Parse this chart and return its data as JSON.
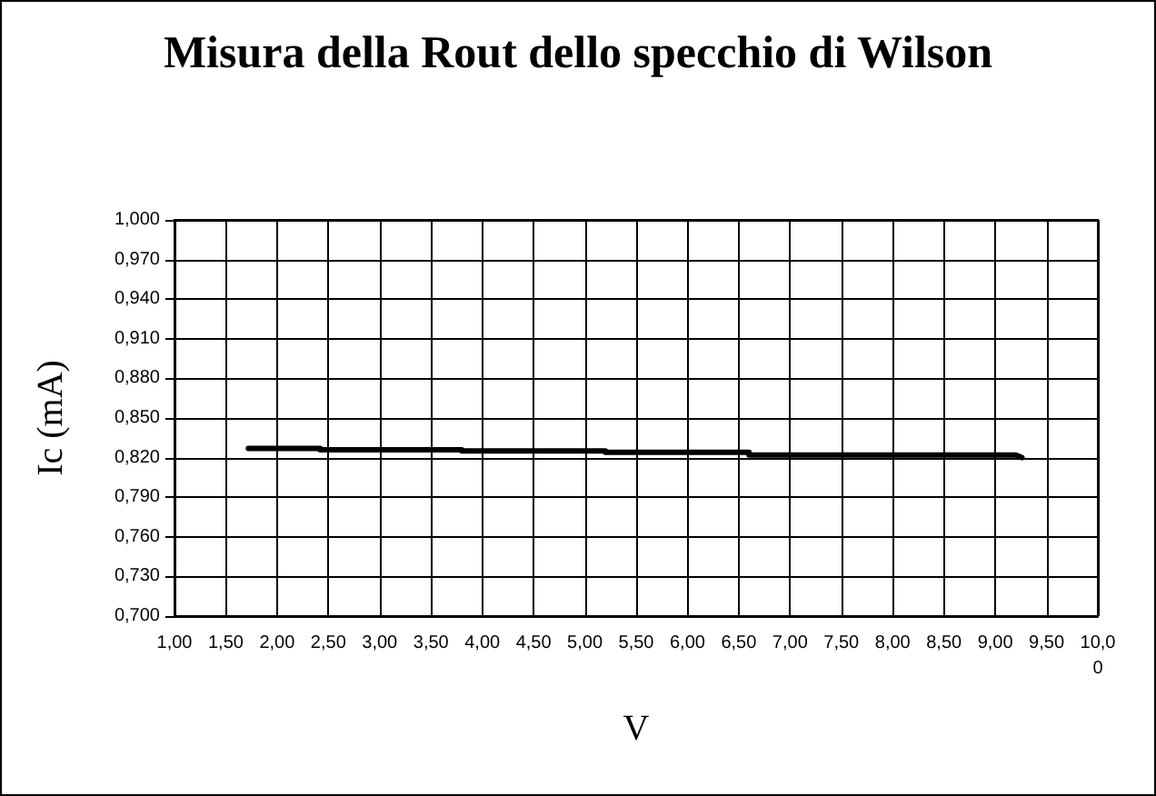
{
  "chart_data": {
    "type": "line",
    "title": "Misura della Rout dello specchio di Wilson",
    "xlabel": "V",
    "ylabel": "Ic (mA)",
    "x": [
      1.72,
      2.42,
      2.42,
      3.8,
      3.8,
      5.2,
      5.2,
      6.6,
      6.6,
      9.2,
      9.26
    ],
    "series": [
      {
        "color": "#000000",
        "values": [
          0.827,
          0.827,
          0.826,
          0.826,
          0.825,
          0.825,
          0.824,
          0.824,
          0.822,
          0.822,
          0.82
        ]
      }
    ],
    "xlim": [
      1,
      10
    ],
    "xticks": [
      {
        "value": 1,
        "label": "1,00"
      },
      {
        "value": 1.5,
        "label": "1,50"
      },
      {
        "value": 2,
        "label": "2,00"
      },
      {
        "value": 2.5,
        "label": "2,50"
      },
      {
        "value": 3,
        "label": "3,00"
      },
      {
        "value": 3.5,
        "label": "3,50"
      },
      {
        "value": 4,
        "label": "4,00"
      },
      {
        "value": 4.5,
        "label": "4,50"
      },
      {
        "value": 5,
        "label": "5,00"
      },
      {
        "value": 5.5,
        "label": "5,50"
      },
      {
        "value": 6,
        "label": "6,00"
      },
      {
        "value": 6.5,
        "label": "6,50"
      },
      {
        "value": 7,
        "label": "7,00"
      },
      {
        "value": 7.5,
        "label": "7,50"
      },
      {
        "value": 8,
        "label": "8,00"
      },
      {
        "value": 8.5,
        "label": "8,50"
      },
      {
        "value": 9,
        "label": "9,00"
      },
      {
        "value": 9.5,
        "label": "9,50"
      },
      {
        "value": 10,
        "label": "10,00"
      }
    ],
    "ylim": [
      0.7,
      1.0
    ],
    "yticks": [
      {
        "value": 0.7,
        "label": "0,700"
      },
      {
        "value": 0.73,
        "label": "0,730"
      },
      {
        "value": 0.76,
        "label": "0,760"
      },
      {
        "value": 0.79,
        "label": "0,790"
      },
      {
        "value": 0.82,
        "label": "0,820"
      },
      {
        "value": 0.85,
        "label": "0,850"
      },
      {
        "value": 0.88,
        "label": "0,880"
      },
      {
        "value": 0.91,
        "label": "0,910"
      },
      {
        "value": 0.94,
        "label": "0,940"
      },
      {
        "value": 0.97,
        "label": "0,970"
      },
      {
        "value": 1.0,
        "label": "1,000"
      }
    ],
    "grid": true,
    "marker": "none",
    "line_style": "solid"
  }
}
